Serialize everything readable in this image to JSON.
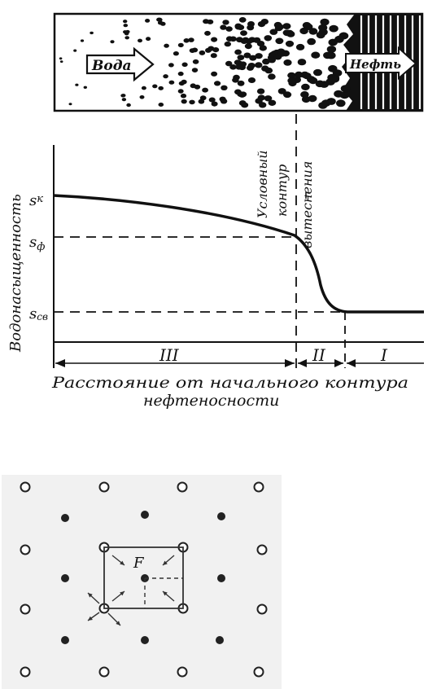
{
  "top_diagram": {
    "water_label": "Вода",
    "oil_label": "Нефть"
  },
  "graph": {
    "ylabel": "Водонасыщенность",
    "sk": "s",
    "sk_sub": "к",
    "sf": "s",
    "sf_sub": "ф",
    "sc": "s",
    "sc_sub": "св",
    "contour_line1": "Условный",
    "contour_line2": "контур",
    "contour_line3": "вытеснения",
    "zone3": "III",
    "zone2": "II",
    "zone1": "I",
    "xlabel_line1": "Расстояние от начального контура",
    "xlabel_line2": "нефтеносности"
  },
  "grid_diagram": {
    "f_label": "F"
  },
  "colors": {
    "ink": "#111111",
    "paper": "#ffffff",
    "grid_bg": "#f1f1f1"
  }
}
